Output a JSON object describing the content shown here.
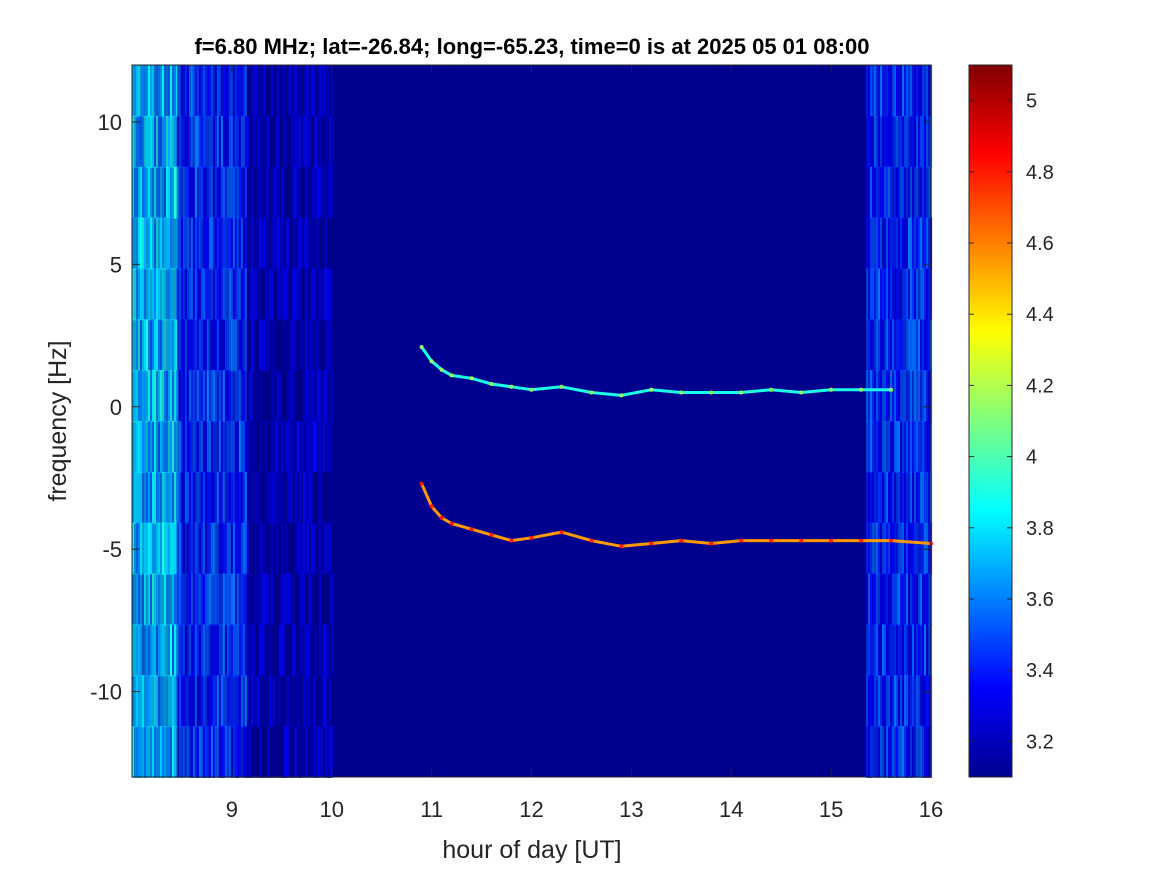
{
  "chart_data": {
    "type": "heatmap",
    "title": "f=6.80 MHz;  lat=-26.84; long=-65.23, time=0 is at 2025 05 01 08:00",
    "xlabel": "hour of day [UT]",
    "ylabel": "frequency [Hz]",
    "xlim": [
      8.0,
      16.0
    ],
    "ylim": [
      -13.0,
      12.0
    ],
    "xticks": [
      9,
      10,
      11,
      12,
      13,
      14,
      15,
      16
    ],
    "xtick_labels": [
      "9",
      "10",
      "11",
      "12",
      "13",
      "14",
      "15",
      "16"
    ],
    "yticks": [
      -10,
      -5,
      0,
      5,
      10
    ],
    "ytick_labels": [
      "-10",
      "-5",
      "0",
      "5",
      "10"
    ],
    "colormap": "jet",
    "background_value": 3.1,
    "colorbar": {
      "limits": [
        3.1,
        5.1
      ],
      "ticks": [
        3.2,
        3.4,
        3.6,
        3.8,
        4.0,
        4.2,
        4.4,
        4.6,
        4.8,
        5.0
      ],
      "tick_labels": [
        "3.2",
        "3.4",
        "3.6",
        "3.8",
        "4",
        "4.2",
        "4.4",
        "4.6",
        "4.8",
        "5"
      ]
    },
    "noise_bands": [
      {
        "x": [
          8.0,
          8.45
        ],
        "level": 3.75
      },
      {
        "x": [
          8.45,
          9.15
        ],
        "level": 3.45
      },
      {
        "x": [
          9.15,
          10.0
        ],
        "level": 3.2
      },
      {
        "x": [
          15.35,
          16.0
        ],
        "level": 3.45
      }
    ],
    "series": [
      {
        "x": [
          10.9,
          11.0,
          11.1,
          11.2,
          11.4,
          11.6,
          11.8,
          12.0,
          12.3,
          12.6,
          12.9,
          13.2,
          13.5,
          13.8,
          14.1,
          14.4,
          14.7,
          15.0,
          15.3,
          15.6
        ],
        "y": [
          2.1,
          1.6,
          1.3,
          1.1,
          1.0,
          0.8,
          0.7,
          0.6,
          0.7,
          0.5,
          0.4,
          0.6,
          0.5,
          0.5,
          0.5,
          0.6,
          0.5,
          0.6,
          0.6,
          0.6
        ],
        "level": 3.9
      },
      {
        "x": [
          10.9,
          11.0,
          11.1,
          11.2,
          11.4,
          11.6,
          11.8,
          12.0,
          12.3,
          12.6,
          12.9,
          13.2,
          13.5,
          13.8,
          14.1,
          14.4,
          14.7,
          15.0,
          15.3,
          15.6,
          16.0
        ],
        "y": [
          -2.7,
          -3.5,
          -3.9,
          -4.1,
          -4.3,
          -4.5,
          -4.7,
          -4.6,
          -4.4,
          -4.7,
          -4.9,
          -4.8,
          -4.7,
          -4.8,
          -4.7,
          -4.7,
          -4.7,
          -4.7,
          -4.7,
          -4.7,
          -4.8
        ],
        "level": 4.55
      }
    ]
  }
}
